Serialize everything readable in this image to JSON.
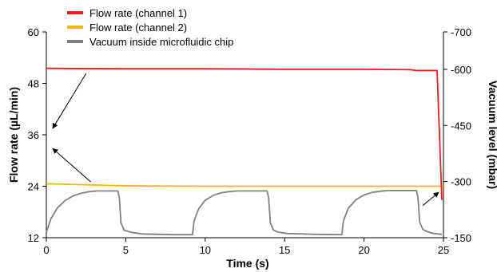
{
  "chart_data": {
    "type": "line",
    "title": "",
    "xlabel": "Time (s)",
    "ylabel": "Flow rate (µL/min)",
    "y2label": "Vacuum level (mbar)",
    "xlim": [
      0,
      25
    ],
    "ylim": [
      12,
      60
    ],
    "y2lim": [
      -150,
      -700
    ],
    "xticks": [
      0,
      5,
      10,
      15,
      20,
      25
    ],
    "yticks": [
      12,
      24,
      36,
      48,
      60
    ],
    "y2ticks": [
      -150,
      -300,
      -450,
      -600,
      -700
    ],
    "grid": false,
    "legend_position": "top-left",
    "series": [
      {
        "name": "Flow rate (channel 1)",
        "axis": "left",
        "color": "#ee1c1c",
        "x": [
          0,
          5,
          10,
          15,
          20,
          22.9,
          23.3,
          24.6,
          24.9
        ],
        "y": [
          51.5,
          51.4,
          51.4,
          51.3,
          51.3,
          51.2,
          51.0,
          51.0,
          20.8
        ]
      },
      {
        "name": "Flow rate (channel 2)",
        "axis": "left",
        "color": "#f5b800",
        "x": [
          0,
          2,
          5,
          10,
          15,
          20,
          25
        ],
        "y": [
          24.6,
          24.4,
          24.1,
          24.0,
          24.0,
          24.0,
          24.0
        ]
      },
      {
        "name": "Vacuum inside microfluidic chip",
        "axis": "right",
        "color": "#808080",
        "x": [
          0,
          0.3,
          0.7,
          1.2,
          1.7,
          2.2,
          2.7,
          3.2,
          4.5,
          4.6,
          4.7,
          4.9,
          5.3,
          6,
          8,
          9.2,
          9.3,
          9.6,
          10.0,
          10.5,
          11.0,
          11.5,
          12.0,
          13.9,
          14.0,
          14.1,
          14.3,
          14.6,
          15.2,
          17,
          18.6,
          18.7,
          19.0,
          19.5,
          20.0,
          20.5,
          21.0,
          21.5,
          23.3,
          23.4,
          23.5,
          23.7,
          24.0,
          24.3,
          24.9
        ],
        "y": [
          -165,
          -202,
          -230,
          -250,
          -262,
          -269,
          -273,
          -275,
          -275,
          -255,
          -190,
          -170,
          -165,
          -160,
          -158,
          -158,
          -195,
          -228,
          -250,
          -263,
          -270,
          -273,
          -275,
          -275,
          -255,
          -190,
          -170,
          -165,
          -161,
          -159,
          -158,
          -195,
          -228,
          -252,
          -264,
          -271,
          -274,
          -276,
          -276,
          -255,
          -192,
          -172,
          -166,
          -162,
          -159
        ]
      }
    ],
    "annotations": [
      {
        "type": "arrow",
        "from": [
          2.5,
          50.3
        ],
        "to": [
          0.4,
          37.5
        ]
      },
      {
        "type": "arrow",
        "from": [
          2.8,
          25.0
        ],
        "to": [
          0.4,
          32.8
        ]
      },
      {
        "type": "arrow",
        "from": [
          23.7,
          19.5
        ],
        "to": [
          24.7,
          22.6
        ]
      }
    ]
  }
}
